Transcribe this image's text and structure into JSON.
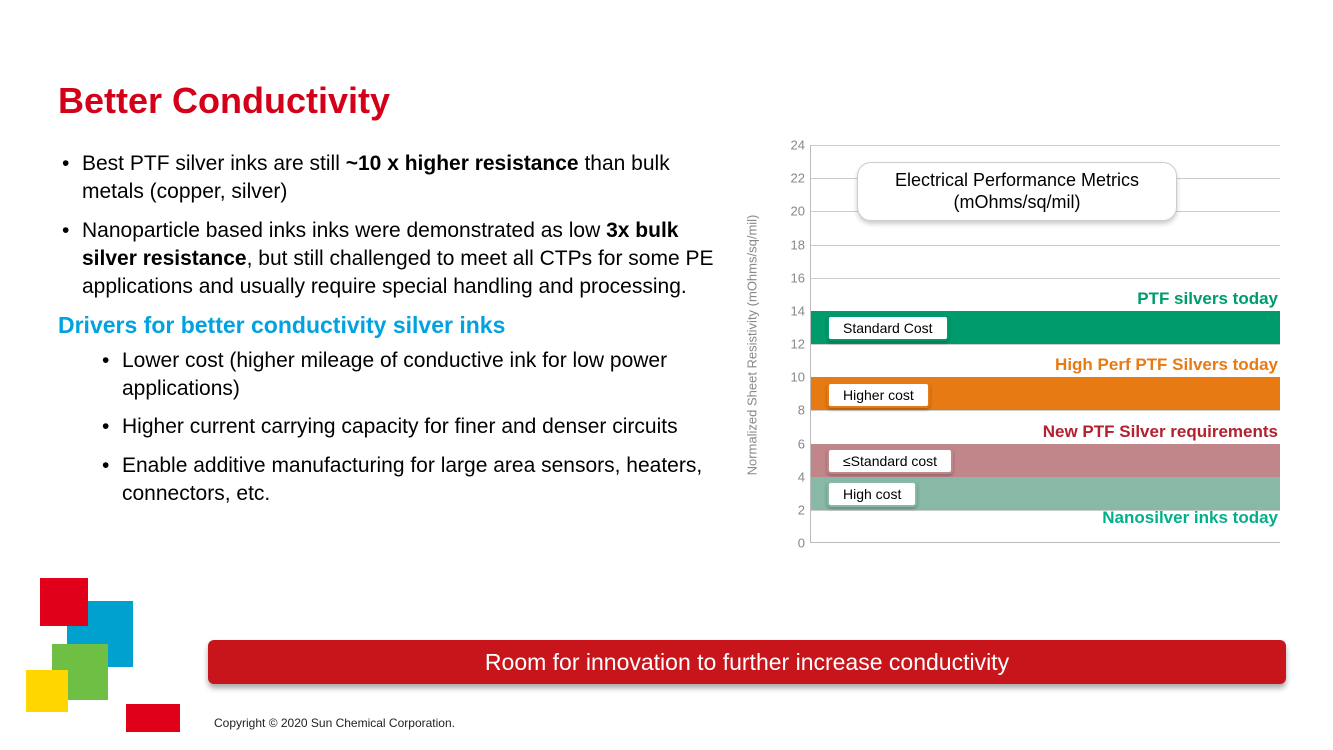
{
  "title": {
    "text": "Better Conductivity",
    "color": "#d4001a"
  },
  "bullets": {
    "item1_pre": "Best PTF silver inks are still ",
    "item1_b": "~10 x higher resistance",
    "item1_post": " than bulk metals (copper, silver)",
    "item2_pre": "Nanoparticle based inks inks were demonstrated as low ",
    "item2_b": "3x bulk silver resistance",
    "item2_post": ", but still challenged to meet all CTPs for some PE applications and usually require special handling and processing."
  },
  "sub_heading": {
    "text": "Drivers for better conductivity silver inks",
    "color": "#00a3e0"
  },
  "sub_bullets": {
    "s1": "Lower cost (higher mileage of conductive ink for low power applications)",
    "s2": "Higher current carrying capacity for finer and denser circuits",
    "s3": "Enable additive manufacturing for large area sensors, heaters, connectors, etc."
  },
  "chart": {
    "title_l1": "Electrical Performance Metrics",
    "title_l2": "(mOhms/sq/mil)",
    "y_axis_label": "Normalized Sheet Resistivity (mOhms/sq/mil)",
    "y_max": 24,
    "y_tick_step": 2,
    "ticks": [
      "0",
      "2",
      "4",
      "6",
      "8",
      "10",
      "12",
      "14",
      "16",
      "18",
      "20",
      "22",
      "24"
    ],
    "grid_color": "#cccccc",
    "series": {
      "ptf": {
        "label": "PTF silvers today",
        "color": "#009b6d",
        "low": 12,
        "high": 14,
        "cost": "Standard Cost"
      },
      "hp": {
        "label": "High Perf PTF Silvers today",
        "color": "#e87a14",
        "low": 8,
        "high": 10,
        "cost": "Higher cost"
      },
      "new": {
        "label": "New PTF Silver requirements",
        "color": "#c1868a",
        "label_color": "#b3202e",
        "low": 4,
        "high": 6,
        "cost": "≤Standard cost"
      },
      "nano": {
        "label": "Nanosilver inks today",
        "color": "#88b9a6",
        "label_color": "#00b08a",
        "low": 2,
        "high": 4,
        "cost": "High cost"
      }
    }
  },
  "banner": {
    "text": "Room for innovation to further increase conductivity",
    "bg": "#c8151b",
    "fg": "#ffffff"
  },
  "logo_colors": {
    "red": "#e1001a",
    "blue": "#00a0cf",
    "green": "#6fbf44",
    "yellow": "#ffd600",
    "red2": "#e1001a"
  },
  "copyright": "Copyright © 2020 Sun Chemical Corporation."
}
